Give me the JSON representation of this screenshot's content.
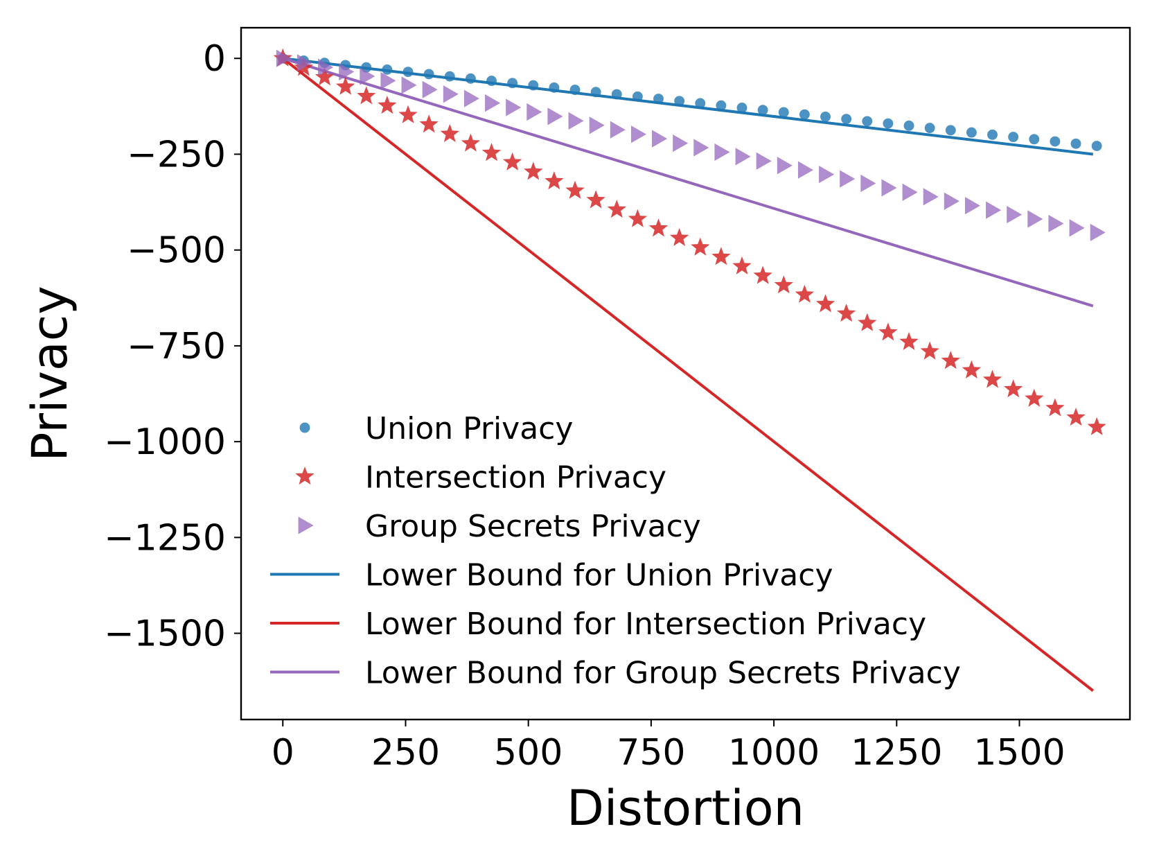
{
  "chart_data": {
    "type": "scatter",
    "xlabel": "Distortion",
    "ylabel": "Privacy",
    "xlim": [
      -85,
      1725
    ],
    "ylim": [
      -1725,
      80
    ],
    "xticks": [
      0,
      250,
      500,
      750,
      1000,
      1250,
      1500
    ],
    "xtick_labels": [
      "0",
      "250",
      "500",
      "750",
      "1000",
      "1250",
      "1500"
    ],
    "yticks": [
      0,
      -250,
      -500,
      -750,
      -1000,
      -1250,
      -1500
    ],
    "ytick_labels": [
      "0",
      "−250",
      "−500",
      "−750",
      "−1000",
      "−1250",
      "−1500"
    ],
    "grid": false,
    "legend_position": "lower-left",
    "marker_x_start": 0,
    "marker_x_step": 42.5,
    "marker_count": 40,
    "series": [
      {
        "name": "Union Privacy",
        "kind": "scatter",
        "marker": "circle",
        "color": "#1f77b4",
        "slope": -0.1378,
        "intercept": 0
      },
      {
        "name": "Intersection Privacy",
        "kind": "scatter",
        "marker": "star",
        "color": "#d62728",
        "slope": -0.5804,
        "intercept": 0
      },
      {
        "name": "Group Secrets Privacy",
        "kind": "scatter",
        "marker": "triangle-right",
        "color": "#9467bd",
        "slope": -0.274,
        "intercept": 0
      },
      {
        "name": "Lower Bound for Union Privacy",
        "kind": "line",
        "color": "#1f77b4",
        "x": [
          0,
          1650
        ],
        "y": [
          0,
          -250
        ]
      },
      {
        "name": "Lower Bound for Intersection Privacy",
        "kind": "line",
        "color": "#d62728",
        "x": [
          0,
          1650
        ],
        "y": [
          0,
          -1650
        ]
      },
      {
        "name": "Lower Bound for Group Secrets Privacy",
        "kind": "line",
        "color": "#9467bd",
        "x": [
          0,
          1650
        ],
        "y": [
          0,
          -646
        ]
      }
    ]
  }
}
